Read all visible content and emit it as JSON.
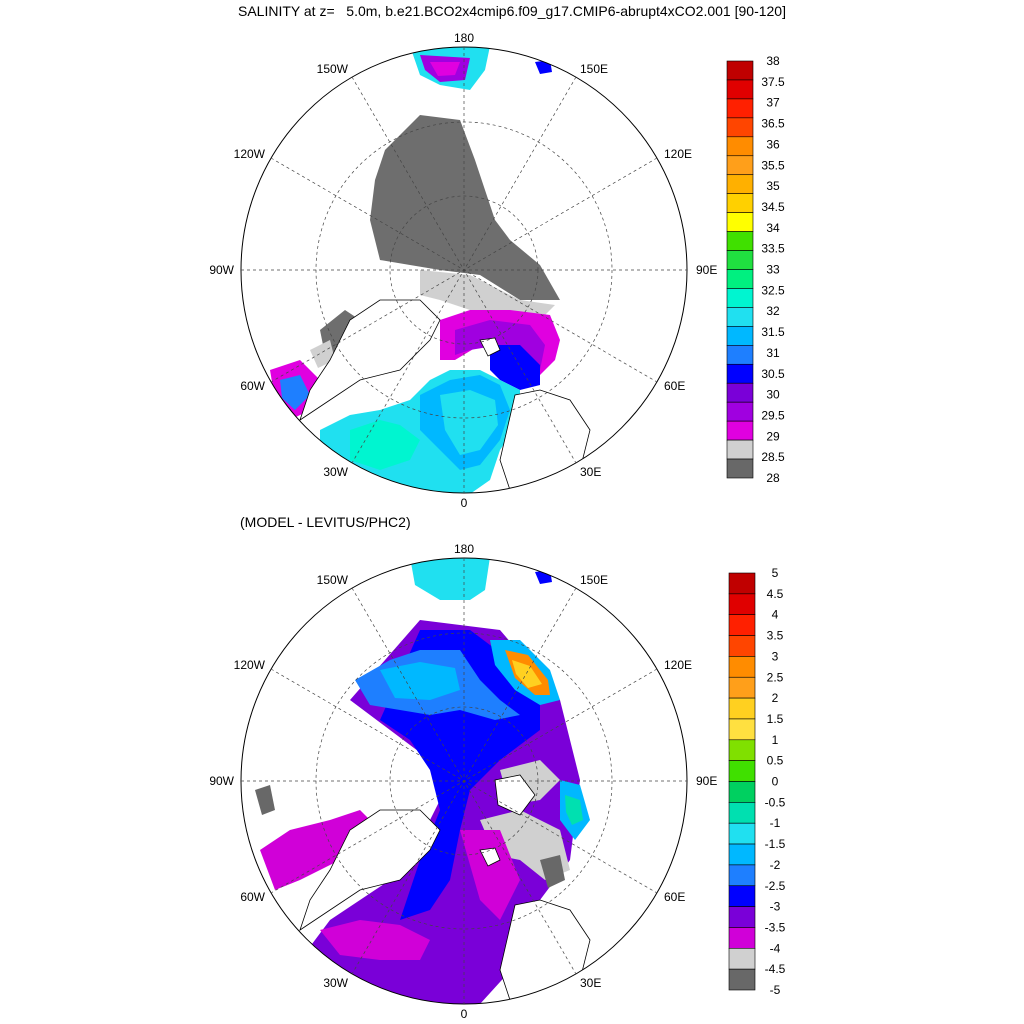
{
  "top_title": "SALINITY at z=   5.0m, b.e21.BCO2x4cmip6.f09_g17.CMIP6-abrupt4xCO2.001 [90-120]",
  "bottom_title": "(MODEL - LEVITUS/PHC2)",
  "longitude_labels": {
    "n180": "180",
    "w150": "150W",
    "e150": "150E",
    "w120": "120W",
    "e120": "120E",
    "w90": "90W",
    "e90": "90E",
    "w60": "60W",
    "e60": "60E",
    "w30": "30W",
    "e30": "30E",
    "s0": "0"
  },
  "top_colorbar": {
    "labels": [
      "38",
      "37.5",
      "37",
      "36.5",
      "36",
      "35.5",
      "35",
      "34.5",
      "34",
      "33.5",
      "33",
      "32.5",
      "32",
      "31.5",
      "31",
      "30.5",
      "30",
      "29.5",
      "29",
      "28.5",
      "28"
    ],
    "colors": [
      "#c00000",
      "#e00000",
      "#ff2000",
      "#ff4500",
      "#ff8c00",
      "#ff9f1a",
      "#ffb000",
      "#ffd000",
      "#ffff00",
      "#40e000",
      "#20e040",
      "#00f080",
      "#00f5d0",
      "#20e0f0",
      "#00b8ff",
      "#1e7fff",
      "#0000ff",
      "#7a00d8",
      "#a000e0",
      "#e000e0",
      "#d0d0d0",
      "#686868"
    ]
  },
  "bottom_colorbar": {
    "labels": [
      "5",
      "4.5",
      "4",
      "3.5",
      "3",
      "2.5",
      "2",
      "1.5",
      "1",
      "0.5",
      "0",
      "-0.5",
      "-1",
      "-1.5",
      "-2",
      "-2.5",
      "-3",
      "-3.5",
      "-4",
      "-4.5",
      "-5"
    ],
    "colors": [
      "#c00000",
      "#e00000",
      "#ff2000",
      "#ff4500",
      "#ff8c00",
      "#ff9f1a",
      "#ffd020",
      "#ffe040",
      "#80e000",
      "#40e000",
      "#00d060",
      "#00e0b0",
      "#20e0f0",
      "#00b8ff",
      "#1e7fff",
      "#0000ff",
      "#7a00d8",
      "#d000d8",
      "#d0d0d0",
      "#686868"
    ]
  }
}
